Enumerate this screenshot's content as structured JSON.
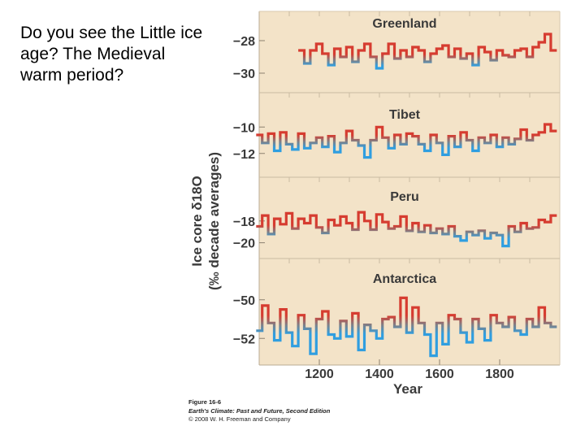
{
  "question": "Do you see the Little ice age? The Medieval warm period?",
  "caption": {
    "figure": "Figure 16-6",
    "book": "Earth's Climate: Past and Future, Second Edition",
    "copyright": "© 2008 W. H. Freeman and Company"
  },
  "colors": {
    "background": "#f3e3c8",
    "warm": "#d63c30",
    "cold": "#2f9ee0",
    "mid": "#7f7f86",
    "text": "#3a3a3a"
  },
  "chart_data": {
    "type": "line",
    "xlabel": "Year",
    "ylabel": "Ice core δ18O (‰ decade averages)",
    "x_ticks": [
      1200,
      1400,
      1600,
      1800
    ],
    "xlim": [
      1000,
      2000
    ],
    "panels": [
      {
        "title": "Greenland",
        "yticks": [
          "−28",
          "−30"
        ],
        "ytick_values": [
          -28,
          -30
        ],
        "ylim": [
          -30.5,
          -27.5
        ],
        "baseline": -29.2,
        "x": [
          1140,
          1160,
          1180,
          1200,
          1220,
          1240,
          1260,
          1280,
          1300,
          1320,
          1340,
          1360,
          1380,
          1400,
          1420,
          1440,
          1460,
          1480,
          1500,
          1520,
          1540,
          1560,
          1580,
          1600,
          1620,
          1640,
          1660,
          1680,
          1700,
          1720,
          1740,
          1760,
          1780,
          1800,
          1820,
          1840,
          1860,
          1880,
          1900,
          1920,
          1940,
          1960,
          1980
        ],
        "y": [
          -28.6,
          -29.4,
          -28.6,
          -28.2,
          -28.8,
          -29.5,
          -28.5,
          -29.0,
          -28.4,
          -29.3,
          -28.6,
          -28.2,
          -29.0,
          -29.7,
          -28.8,
          -28.2,
          -29.1,
          -28.6,
          -29.0,
          -28.4,
          -28.6,
          -29.3,
          -28.8,
          -28.5,
          -28.3,
          -29.0,
          -28.5,
          -29.1,
          -28.8,
          -29.5,
          -28.4,
          -28.7,
          -29.2,
          -28.6,
          -28.9,
          -29.0,
          -28.6,
          -28.5,
          -29.0,
          -28.4,
          -28.1,
          -27.6,
          -28.6
        ]
      },
      {
        "title": "Tibet",
        "yticks": [
          "−10",
          "−12"
        ],
        "ytick_values": [
          -10,
          -12
        ],
        "ylim": [
          -13.0,
          -9.0
        ],
        "baseline": -11.1,
        "x": [
          1000,
          1020,
          1040,
          1060,
          1080,
          1100,
          1120,
          1140,
          1160,
          1180,
          1200,
          1220,
          1240,
          1260,
          1280,
          1300,
          1320,
          1340,
          1360,
          1380,
          1400,
          1420,
          1440,
          1460,
          1480,
          1500,
          1520,
          1540,
          1560,
          1580,
          1600,
          1620,
          1640,
          1660,
          1680,
          1700,
          1720,
          1740,
          1760,
          1780,
          1800,
          1820,
          1840,
          1860,
          1880,
          1900,
          1920,
          1940,
          1960,
          1980
        ],
        "y": [
          -10.6,
          -11.2,
          -10.5,
          -11.8,
          -10.4,
          -11.3,
          -11.7,
          -10.5,
          -11.6,
          -11.2,
          -10.8,
          -11.5,
          -10.7,
          -11.9,
          -11.2,
          -10.3,
          -11.0,
          -11.4,
          -12.3,
          -11.0,
          -10.0,
          -10.8,
          -11.6,
          -10.6,
          -11.3,
          -10.5,
          -10.7,
          -11.3,
          -11.8,
          -10.6,
          -11.2,
          -12.1,
          -10.7,
          -11.5,
          -10.4,
          -11.0,
          -11.8,
          -10.8,
          -11.2,
          -10.6,
          -11.5,
          -10.8,
          -11.3,
          -10.9,
          -10.2,
          -11.0,
          -10.6,
          -10.4,
          -9.8,
          -10.3
        ]
      },
      {
        "title": "Peru",
        "yticks": [
          "−18",
          "−20"
        ],
        "ytick_values": [
          -18,
          -20
        ],
        "ylim": [
          -21.0,
          -16.0
        ],
        "baseline": -19.0,
        "x": [
          1000,
          1020,
          1040,
          1060,
          1080,
          1100,
          1120,
          1140,
          1160,
          1180,
          1200,
          1220,
          1240,
          1260,
          1280,
          1300,
          1320,
          1340,
          1360,
          1380,
          1400,
          1420,
          1440,
          1460,
          1480,
          1500,
          1520,
          1540,
          1560,
          1580,
          1600,
          1620,
          1640,
          1660,
          1680,
          1700,
          1720,
          1740,
          1760,
          1780,
          1800,
          1820,
          1840,
          1860,
          1880,
          1900,
          1920,
          1940,
          1960,
          1980
        ],
        "y": [
          -18.5,
          -17.5,
          -19.2,
          -17.8,
          -18.3,
          -17.3,
          -18.7,
          -17.8,
          -18.2,
          -17.5,
          -18.6,
          -19.1,
          -17.9,
          -18.4,
          -17.6,
          -18.2,
          -18.8,
          -17.2,
          -18.0,
          -18.8,
          -17.4,
          -18.1,
          -18.7,
          -18.5,
          -17.6,
          -18.9,
          -18.2,
          -19.0,
          -18.4,
          -19.1,
          -18.7,
          -19.2,
          -18.5,
          -19.4,
          -19.8,
          -19.0,
          -19.3,
          -18.9,
          -19.6,
          -19.1,
          -19.3,
          -20.3,
          -18.5,
          -19.0,
          -18.2,
          -18.7,
          -18.6,
          -17.9,
          -18.1,
          -17.5
        ]
      },
      {
        "title": "Antarctica",
        "yticks": [
          "−50",
          "−52"
        ],
        "ytick_values": [
          -50,
          -52
        ],
        "ylim": [
          -53.0,
          -49.0
        ],
        "baseline": -51.3,
        "x": [
          1000,
          1020,
          1040,
          1060,
          1080,
          1100,
          1120,
          1140,
          1160,
          1180,
          1200,
          1220,
          1240,
          1260,
          1280,
          1300,
          1320,
          1340,
          1360,
          1380,
          1400,
          1420,
          1440,
          1460,
          1480,
          1500,
          1520,
          1540,
          1560,
          1580,
          1600,
          1620,
          1640,
          1660,
          1680,
          1700,
          1720,
          1740,
          1760,
          1780,
          1800,
          1820,
          1840,
          1860,
          1880,
          1900,
          1920,
          1940,
          1960,
          1980
        ],
        "y": [
          -51.6,
          -50.3,
          -51.2,
          -52.1,
          -50.5,
          -51.7,
          -52.4,
          -50.8,
          -51.5,
          -52.8,
          -51.0,
          -50.6,
          -51.8,
          -52.0,
          -51.1,
          -51.9,
          -50.7,
          -52.6,
          -51.3,
          -51.6,
          -52.0,
          -51.0,
          -50.9,
          -51.4,
          -49.9,
          -51.7,
          -50.4,
          -51.2,
          -51.8,
          -52.9,
          -51.2,
          -52.3,
          -50.8,
          -51.0,
          -51.7,
          -52.2,
          -51.0,
          -51.5,
          -52.1,
          -50.8,
          -51.2,
          -51.4,
          -50.9,
          -51.6,
          -51.8,
          -51.0,
          -51.4,
          -50.4,
          -51.2,
          -51.4
        ]
      }
    ]
  }
}
